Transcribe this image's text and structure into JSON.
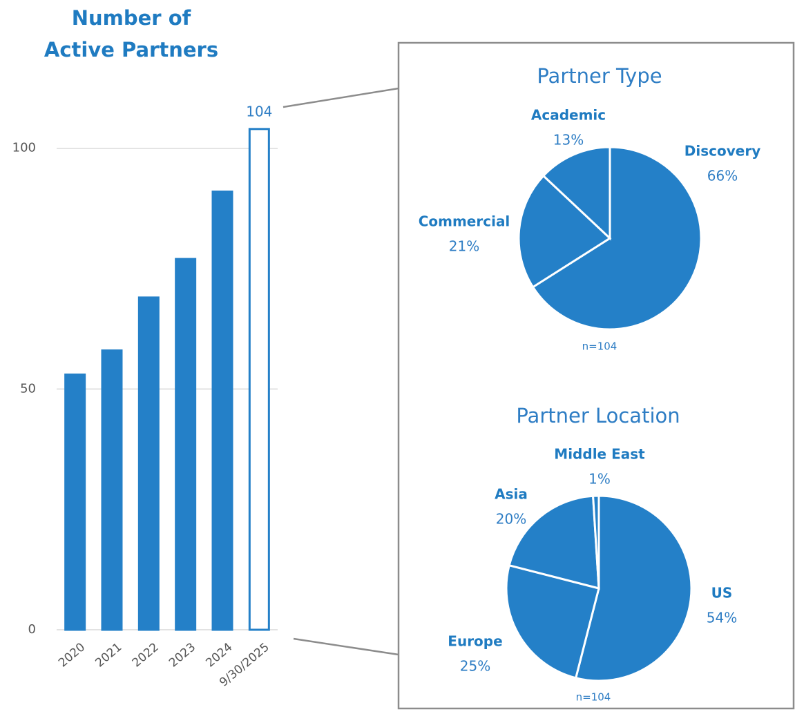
{
  "chart_data": [
    {
      "type": "bar",
      "title": [
        "Number of",
        "Active Partners"
      ],
      "categories": [
        "2020",
        "2021",
        "2022",
        "2023",
        "2024",
        "9/30/2025"
      ],
      "values": [
        53,
        58,
        69,
        77,
        91,
        104
      ],
      "value_labels": [
        null,
        null,
        null,
        null,
        null,
        "104"
      ],
      "color": "#2480c8",
      "fill_colors": [
        "#2480c8",
        "#2480c8",
        "#2480c8",
        "#2480c8",
        "#2480c8",
        "#ffffff"
      ],
      "ylim": [
        0,
        110
      ],
      "yticks": [
        0,
        50,
        100
      ],
      "grid": true
    },
    {
      "type": "pie",
      "title": "Partner Type",
      "note": "n=104",
      "categories": [
        "Discovery",
        "Commercial",
        "Academic"
      ],
      "values": [
        66,
        21,
        13
      ],
      "value_labels": [
        "66%",
        "21%",
        "13%"
      ],
      "color": "#2480c8"
    },
    {
      "type": "pie",
      "title": "Partner Location",
      "note": "n=104",
      "categories": [
        "US",
        "Europe",
        "Asia",
        "Middle East"
      ],
      "values": [
        54,
        25,
        20,
        1
      ],
      "value_labels": [
        "54%",
        "25%",
        "20%",
        "1%"
      ],
      "color": "#2480c8"
    }
  ]
}
